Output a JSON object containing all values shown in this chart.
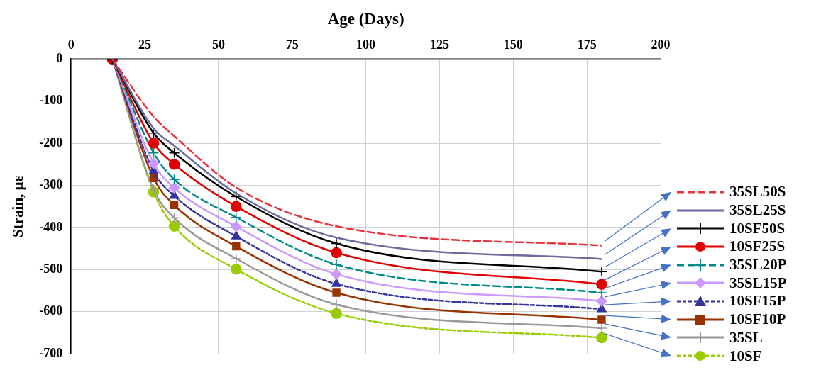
{
  "chart_data": {
    "type": "line",
    "xlabel": "Age (Days)",
    "ylabel": "Strain, με",
    "x": [
      14,
      28,
      35,
      56,
      90,
      180
    ],
    "xlim": [
      0,
      200
    ],
    "xticks": [
      0,
      25,
      50,
      75,
      100,
      125,
      150,
      175,
      200
    ],
    "ylim": [
      -700,
      0
    ],
    "yticks": [
      -700,
      -600,
      -500,
      -400,
      -300,
      -200,
      -100,
      0
    ],
    "grid": true,
    "legend": "right",
    "series": [
      {
        "name": "35SL50S",
        "color": "#e8323c",
        "line_style": "dashed",
        "marker": "none",
        "values": [
          0,
          -137,
          -183,
          -305,
          -397,
          -443
        ]
      },
      {
        "name": "35SL25S",
        "color": "#6b6b9f",
        "line_style": "solid",
        "marker": "none",
        "values": [
          0,
          -165,
          -206,
          -319,
          -424,
          -475
        ]
      },
      {
        "name": "10SF50S",
        "color": "#000000",
        "line_style": "solid",
        "marker": "cross",
        "values": [
          0,
          -176,
          -223,
          -327,
          -438,
          -505
        ]
      },
      {
        "name": "10SF25S",
        "color": "#e00000",
        "line_style": "solid",
        "marker": "circle",
        "values": [
          0,
          -200,
          -250,
          -350,
          -460,
          -535
        ]
      },
      {
        "name": "35SL20P",
        "color": "#008b8b",
        "line_style": "dashed",
        "marker": "cross",
        "values": [
          0,
          -223,
          -286,
          -376,
          -488,
          -555
        ]
      },
      {
        "name": "35SL15P",
        "color": "#cc99ff",
        "line_style": "solid",
        "marker": "diamond",
        "values": [
          0,
          -248,
          -306,
          -398,
          -511,
          -575
        ]
      },
      {
        "name": "10SF15P",
        "color": "#333399",
        "line_style": "dotted",
        "marker": "triangle",
        "values": [
          0,
          -267,
          -325,
          -421,
          -534,
          -594
        ]
      },
      {
        "name": "10SF10P",
        "color": "#993300",
        "line_style": "solid",
        "marker": "square",
        "values": [
          0,
          -283,
          -347,
          -445,
          -555,
          -619
        ]
      },
      {
        "name": "35SL",
        "color": "#999999",
        "line_style": "solid",
        "marker": "cross",
        "values": [
          0,
          -310,
          -377,
          -474,
          -583,
          -639
        ]
      },
      {
        "name": "10SF",
        "color": "#99cc00",
        "line_style": "dotted",
        "marker": "circle",
        "values": [
          0,
          -316,
          -397,
          -499,
          -604,
          -662
        ]
      }
    ]
  }
}
